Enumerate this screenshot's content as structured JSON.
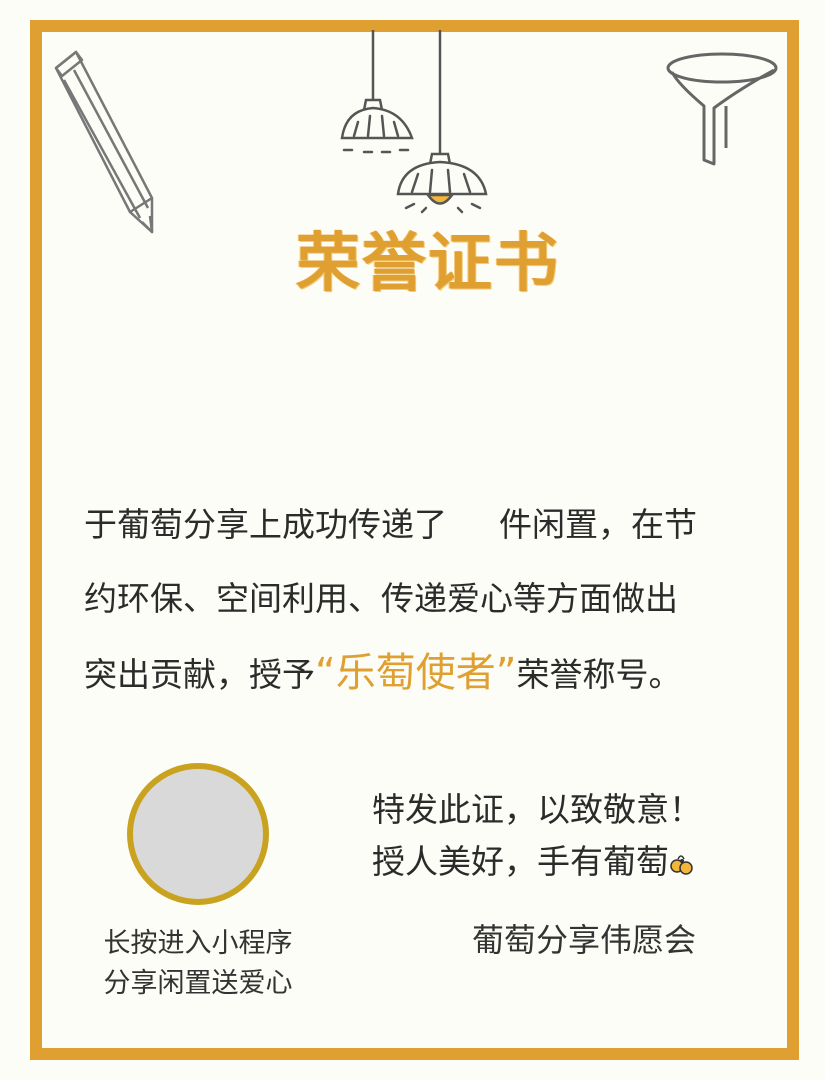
{
  "certificate": {
    "title": "荣誉证书",
    "body_line1_part1": "于葡萄分享上成功传递了",
    "body_line1_part2": "件闲置，在节",
    "body_line2": "约环保、空间利用、传递爱心等方面做出",
    "body_line3_part1": "突出贡献，授予",
    "honor_title": "“乐萄使者”",
    "body_line3_part2": "荣誉称号。",
    "closing_line1": "特发此证，以致敬意！",
    "closing_line2": "授人美好，手有葡萄",
    "organization": "葡萄分享伟愿会",
    "qr_caption_line1": "长按进入小程序",
    "qr_caption_line2": "分享闲置送爱心"
  },
  "colors": {
    "accent": "#e0a031",
    "qr_ring": "#c9a21f",
    "qr_fill": "#d9d9d9",
    "text": "#2b2b2b"
  },
  "icons": [
    "pencil-icon",
    "pendant-lamp-icon",
    "pendant-lamp-icon",
    "funnel-icon",
    "bee-icon"
  ]
}
